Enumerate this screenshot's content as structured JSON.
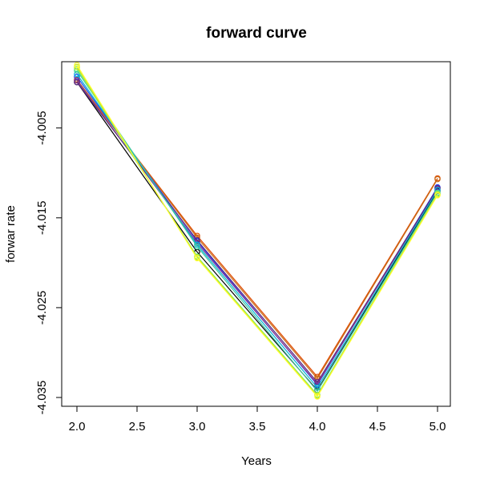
{
  "chart_data": {
    "type": "line",
    "title": "forward curve",
    "xlabel": "Years",
    "ylabel": "forwar rate",
    "xlim": [
      2.0,
      5.0
    ],
    "ylim": [
      -4.0358,
      -3.9978
    ],
    "x_ticks": [
      "2.0",
      "2.5",
      "3.0",
      "3.5",
      "4.0",
      "4.5",
      "5.0"
    ],
    "y_ticks": [
      "-4.005",
      "-4.015",
      "-4.025",
      "-4.035"
    ],
    "x": [
      2.0,
      3.0,
      4.0,
      5.0
    ],
    "grid": false,
    "legend": "none",
    "series": [
      {
        "color": "#000000",
        "values": [
          -3.9999,
          -4.0188,
          -4.0342,
          -4.012
        ]
      },
      {
        "color": "#e04a00",
        "values": [
          -3.9997,
          -4.017,
          -4.0327,
          -4.0106
        ]
      },
      {
        "color": "#c76d1a",
        "values": [
          -3.9996,
          -4.0172,
          -4.0329,
          -4.0107
        ]
      },
      {
        "color": "#1f3fff",
        "values": [
          -3.9993,
          -4.0176,
          -4.0336,
          -4.0116
        ]
      },
      {
        "color": "#8b3a8b",
        "values": [
          -3.9997,
          -4.0178,
          -4.0335,
          -4.0118
        ]
      },
      {
        "color": "#5b2a86",
        "values": [
          -3.9999,
          -4.0175,
          -4.0333,
          -4.0117
        ]
      },
      {
        "color": "#00b4d8",
        "values": [
          -3.999,
          -4.018,
          -4.0339,
          -4.0119
        ]
      },
      {
        "color": "#3ec7a0",
        "values": [
          -3.9986,
          -4.0182,
          -4.0343,
          -4.0122
        ]
      },
      {
        "color": "#76ee76",
        "values": [
          -3.9984,
          -4.0193,
          -4.0347,
          -4.0123
        ]
      },
      {
        "color": "#c8e61e",
        "values": [
          -3.9982,
          -4.0194,
          -4.0348,
          -4.0124
        ]
      },
      {
        "color": "#ffff33",
        "values": [
          -3.998,
          -4.0195,
          -4.0349,
          -4.0125
        ]
      }
    ]
  }
}
